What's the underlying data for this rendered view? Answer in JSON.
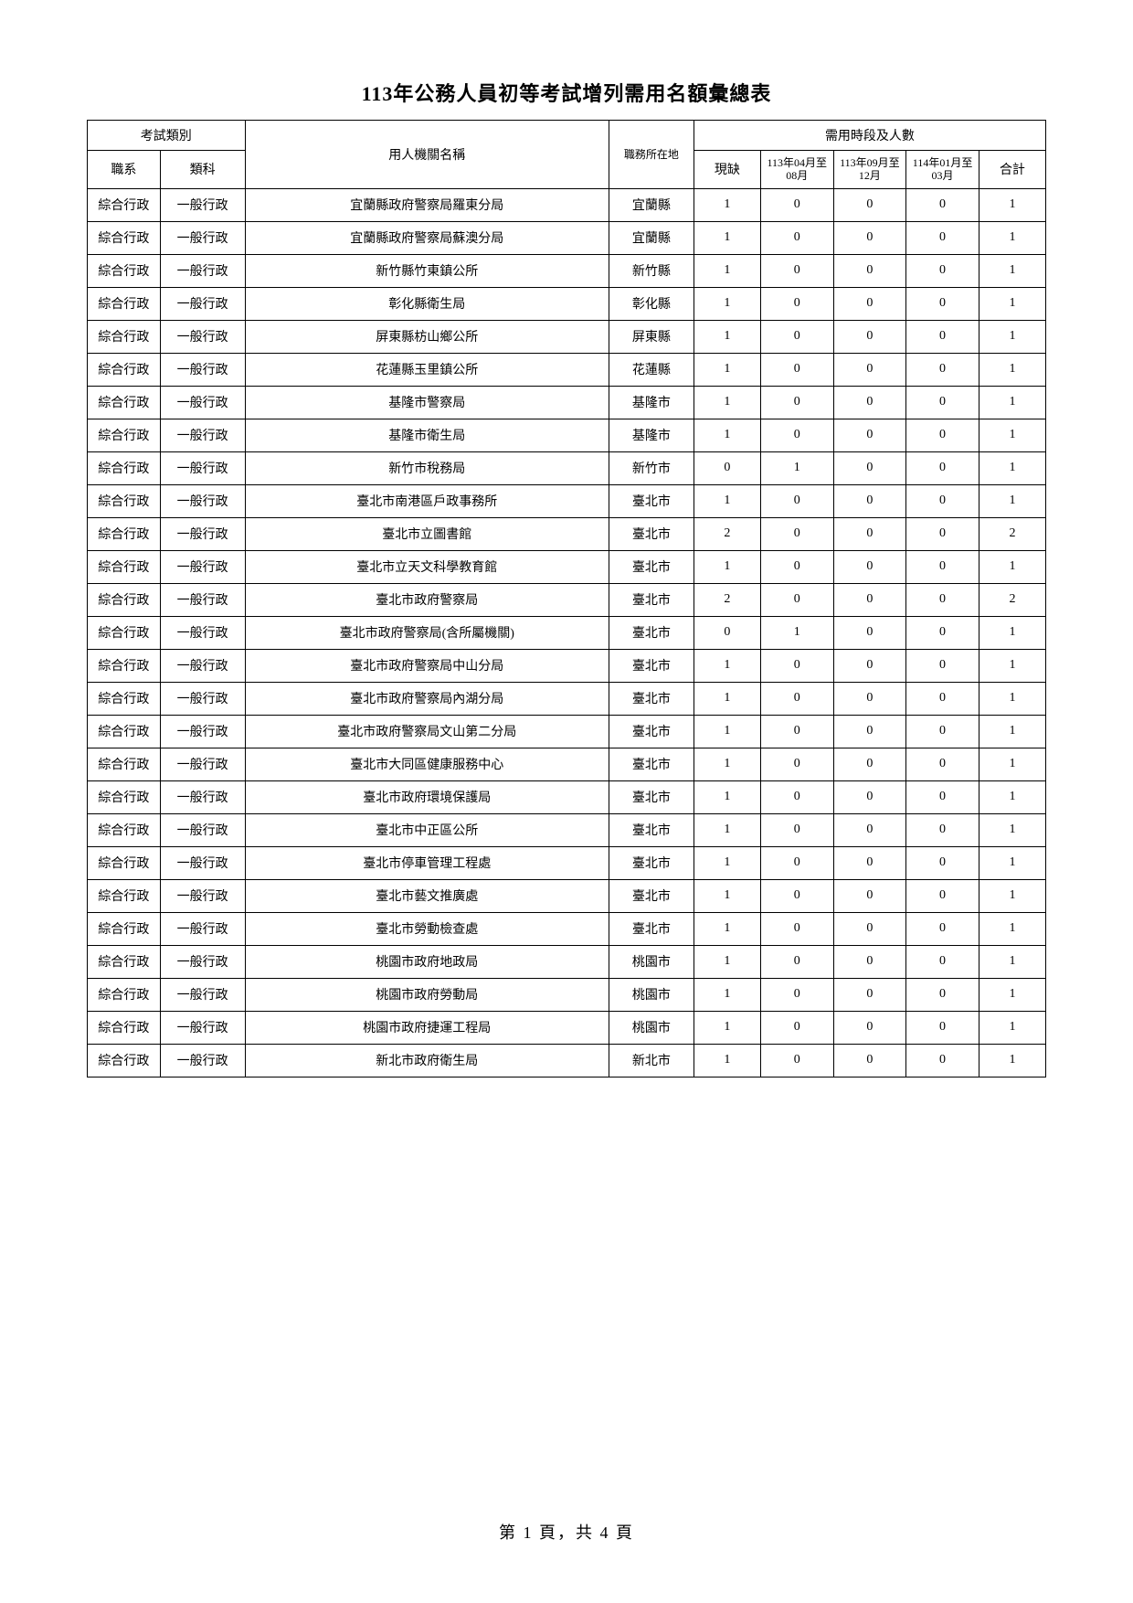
{
  "title": "113年公務人員初等考試增列需用名額彙總表",
  "footer": "第 1 頁，共 4 頁",
  "headers": {
    "exam_type_group": "考試類別",
    "job_series": "職系",
    "subject": "類科",
    "org_name": "用人機關名稱",
    "location": "職務所在地",
    "period_group": "需用時段及人數",
    "current_vacancy": "現缺",
    "period1": "113年04月至08月",
    "period2": "113年09月至12月",
    "period3": "114年01月至03月",
    "total": "合計"
  },
  "rows": [
    {
      "job_series": "綜合行政",
      "subject": "一般行政",
      "org": "宜蘭縣政府警察局羅東分局",
      "loc": "宜蘭縣",
      "current": "1",
      "p1": "0",
      "p2": "0",
      "p3": "0",
      "total": "1"
    },
    {
      "job_series": "綜合行政",
      "subject": "一般行政",
      "org": "宜蘭縣政府警察局蘇澳分局",
      "loc": "宜蘭縣",
      "current": "1",
      "p1": "0",
      "p2": "0",
      "p3": "0",
      "total": "1"
    },
    {
      "job_series": "綜合行政",
      "subject": "一般行政",
      "org": "新竹縣竹東鎮公所",
      "loc": "新竹縣",
      "current": "1",
      "p1": "0",
      "p2": "0",
      "p3": "0",
      "total": "1"
    },
    {
      "job_series": "綜合行政",
      "subject": "一般行政",
      "org": "彰化縣衛生局",
      "loc": "彰化縣",
      "current": "1",
      "p1": "0",
      "p2": "0",
      "p3": "0",
      "total": "1"
    },
    {
      "job_series": "綜合行政",
      "subject": "一般行政",
      "org": "屏東縣枋山鄉公所",
      "loc": "屏東縣",
      "current": "1",
      "p1": "0",
      "p2": "0",
      "p3": "0",
      "total": "1"
    },
    {
      "job_series": "綜合行政",
      "subject": "一般行政",
      "org": "花蓮縣玉里鎮公所",
      "loc": "花蓮縣",
      "current": "1",
      "p1": "0",
      "p2": "0",
      "p3": "0",
      "total": "1"
    },
    {
      "job_series": "綜合行政",
      "subject": "一般行政",
      "org": "基隆市警察局",
      "loc": "基隆市",
      "current": "1",
      "p1": "0",
      "p2": "0",
      "p3": "0",
      "total": "1"
    },
    {
      "job_series": "綜合行政",
      "subject": "一般行政",
      "org": "基隆市衛生局",
      "loc": "基隆市",
      "current": "1",
      "p1": "0",
      "p2": "0",
      "p3": "0",
      "total": "1"
    },
    {
      "job_series": "綜合行政",
      "subject": "一般行政",
      "org": "新竹市稅務局",
      "loc": "新竹市",
      "current": "0",
      "p1": "1",
      "p2": "0",
      "p3": "0",
      "total": "1"
    },
    {
      "job_series": "綜合行政",
      "subject": "一般行政",
      "org": "臺北市南港區戶政事務所",
      "loc": "臺北市",
      "current": "1",
      "p1": "0",
      "p2": "0",
      "p3": "0",
      "total": "1"
    },
    {
      "job_series": "綜合行政",
      "subject": "一般行政",
      "org": "臺北市立圖書館",
      "loc": "臺北市",
      "current": "2",
      "p1": "0",
      "p2": "0",
      "p3": "0",
      "total": "2"
    },
    {
      "job_series": "綜合行政",
      "subject": "一般行政",
      "org": "臺北市立天文科學教育館",
      "loc": "臺北市",
      "current": "1",
      "p1": "0",
      "p2": "0",
      "p3": "0",
      "total": "1"
    },
    {
      "job_series": "綜合行政",
      "subject": "一般行政",
      "org": "臺北市政府警察局",
      "loc": "臺北市",
      "current": "2",
      "p1": "0",
      "p2": "0",
      "p3": "0",
      "total": "2"
    },
    {
      "job_series": "綜合行政",
      "subject": "一般行政",
      "org": "臺北市政府警察局(含所屬機關)",
      "loc": "臺北市",
      "current": "0",
      "p1": "1",
      "p2": "0",
      "p3": "0",
      "total": "1"
    },
    {
      "job_series": "綜合行政",
      "subject": "一般行政",
      "org": "臺北市政府警察局中山分局",
      "loc": "臺北市",
      "current": "1",
      "p1": "0",
      "p2": "0",
      "p3": "0",
      "total": "1"
    },
    {
      "job_series": "綜合行政",
      "subject": "一般行政",
      "org": "臺北市政府警察局內湖分局",
      "loc": "臺北市",
      "current": "1",
      "p1": "0",
      "p2": "0",
      "p3": "0",
      "total": "1"
    },
    {
      "job_series": "綜合行政",
      "subject": "一般行政",
      "org": "臺北市政府警察局文山第二分局",
      "loc": "臺北市",
      "current": "1",
      "p1": "0",
      "p2": "0",
      "p3": "0",
      "total": "1"
    },
    {
      "job_series": "綜合行政",
      "subject": "一般行政",
      "org": "臺北市大同區健康服務中心",
      "loc": "臺北市",
      "current": "1",
      "p1": "0",
      "p2": "0",
      "p3": "0",
      "total": "1"
    },
    {
      "job_series": "綜合行政",
      "subject": "一般行政",
      "org": "臺北市政府環境保護局",
      "loc": "臺北市",
      "current": "1",
      "p1": "0",
      "p2": "0",
      "p3": "0",
      "total": "1"
    },
    {
      "job_series": "綜合行政",
      "subject": "一般行政",
      "org": "臺北市中正區公所",
      "loc": "臺北市",
      "current": "1",
      "p1": "0",
      "p2": "0",
      "p3": "0",
      "total": "1"
    },
    {
      "job_series": "綜合行政",
      "subject": "一般行政",
      "org": "臺北市停車管理工程處",
      "loc": "臺北市",
      "current": "1",
      "p1": "0",
      "p2": "0",
      "p3": "0",
      "total": "1"
    },
    {
      "job_series": "綜合行政",
      "subject": "一般行政",
      "org": "臺北市藝文推廣處",
      "loc": "臺北市",
      "current": "1",
      "p1": "0",
      "p2": "0",
      "p3": "0",
      "total": "1"
    },
    {
      "job_series": "綜合行政",
      "subject": "一般行政",
      "org": "臺北市勞動檢查處",
      "loc": "臺北市",
      "current": "1",
      "p1": "0",
      "p2": "0",
      "p3": "0",
      "total": "1"
    },
    {
      "job_series": "綜合行政",
      "subject": "一般行政",
      "org": "桃園市政府地政局",
      "loc": "桃園市",
      "current": "1",
      "p1": "0",
      "p2": "0",
      "p3": "0",
      "total": "1"
    },
    {
      "job_series": "綜合行政",
      "subject": "一般行政",
      "org": "桃園市政府勞動局",
      "loc": "桃園市",
      "current": "1",
      "p1": "0",
      "p2": "0",
      "p3": "0",
      "total": "1"
    },
    {
      "job_series": "綜合行政",
      "subject": "一般行政",
      "org": "桃園市政府捷運工程局",
      "loc": "桃園市",
      "current": "1",
      "p1": "0",
      "p2": "0",
      "p3": "0",
      "total": "1"
    },
    {
      "job_series": "綜合行政",
      "subject": "一般行政",
      "org": "新北市政府衛生局",
      "loc": "新北市",
      "current": "1",
      "p1": "0",
      "p2": "0",
      "p3": "0",
      "total": "1"
    }
  ]
}
